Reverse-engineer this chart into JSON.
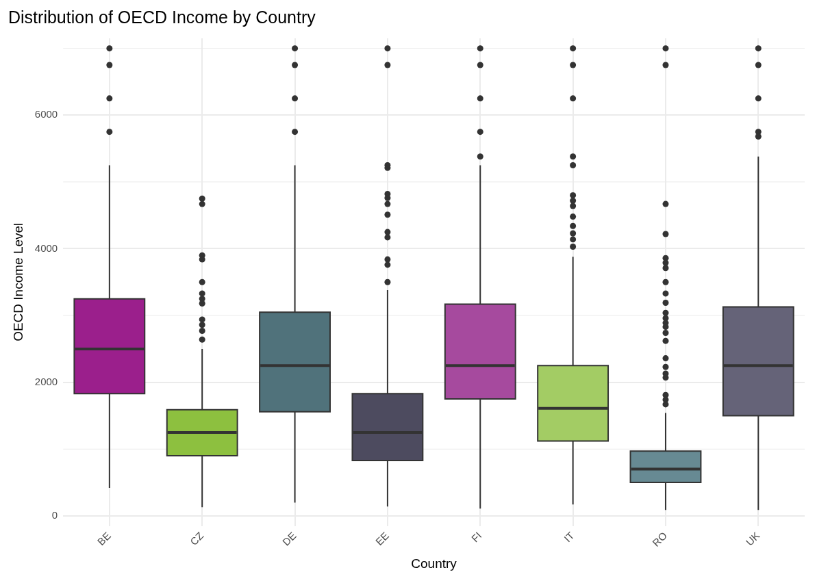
{
  "chart_data": {
    "type": "box",
    "title": "Distribution of OECD Income by Country",
    "xlabel": "Country",
    "ylabel": "OECD Income Level",
    "categories": [
      "BE",
      "CZ",
      "DE",
      "EE",
      "FI",
      "IT",
      "RO",
      "UK"
    ],
    "colors": [
      "#9b1f8c",
      "#8dc03f",
      "#50727b",
      "#4d4b5f",
      "#a64a9e",
      "#a3cc64",
      "#678a93",
      "#656378"
    ],
    "boxes": [
      {
        "low": 420,
        "q1": 1830,
        "median": 2500,
        "q3": 3250,
        "high": 5250,
        "outliers": [
          7000,
          6750,
          6250,
          5750
        ]
      },
      {
        "low": 130,
        "q1": 900,
        "median": 1250,
        "q3": 1590,
        "high": 2500,
        "outliers": [
          4750,
          4670,
          3900,
          3840,
          3500,
          3330,
          3250,
          3180,
          2940,
          2860,
          2770,
          2640
        ]
      },
      {
        "low": 200,
        "q1": 1560,
        "median": 2250,
        "q3": 3050,
        "high": 5250,
        "outliers": [
          7000,
          6750,
          6250,
          5750
        ]
      },
      {
        "low": 140,
        "q1": 830,
        "median": 1250,
        "q3": 1830,
        "high": 3380,
        "outliers": [
          7000,
          6750,
          5250,
          5210,
          4820,
          4760,
          4670,
          4510,
          4250,
          4170,
          3840,
          3760,
          3500
        ]
      },
      {
        "low": 110,
        "q1": 1750,
        "median": 2250,
        "q3": 3170,
        "high": 5250,
        "outliers": [
          7000,
          6750,
          6250,
          5750,
          5380
        ]
      },
      {
        "low": 170,
        "q1": 1120,
        "median": 1610,
        "q3": 2250,
        "high": 3880,
        "outliers": [
          7000,
          6750,
          6250,
          5380,
          5250,
          4800,
          4720,
          4640,
          4480,
          4340,
          4230,
          4140,
          4030
        ]
      },
      {
        "low": 90,
        "q1": 500,
        "median": 700,
        "q3": 970,
        "high": 1540,
        "outliers": [
          7000,
          6750,
          4670,
          4220,
          3860,
          3790,
          3710,
          3500,
          3330,
          3190,
          3040,
          2960,
          2890,
          2830,
          2740,
          2620,
          2360,
          2230,
          2130,
          2070,
          1810,
          1740,
          1670
        ]
      },
      {
        "low": 90,
        "q1": 1500,
        "median": 2250,
        "q3": 3130,
        "high": 5380,
        "outliers": [
          7000,
          6750,
          6250,
          5750,
          5680
        ]
      }
    ],
    "ylim": [
      -150,
      7150
    ],
    "yticks": [
      0,
      2000,
      4000,
      6000
    ],
    "grid": true
  }
}
